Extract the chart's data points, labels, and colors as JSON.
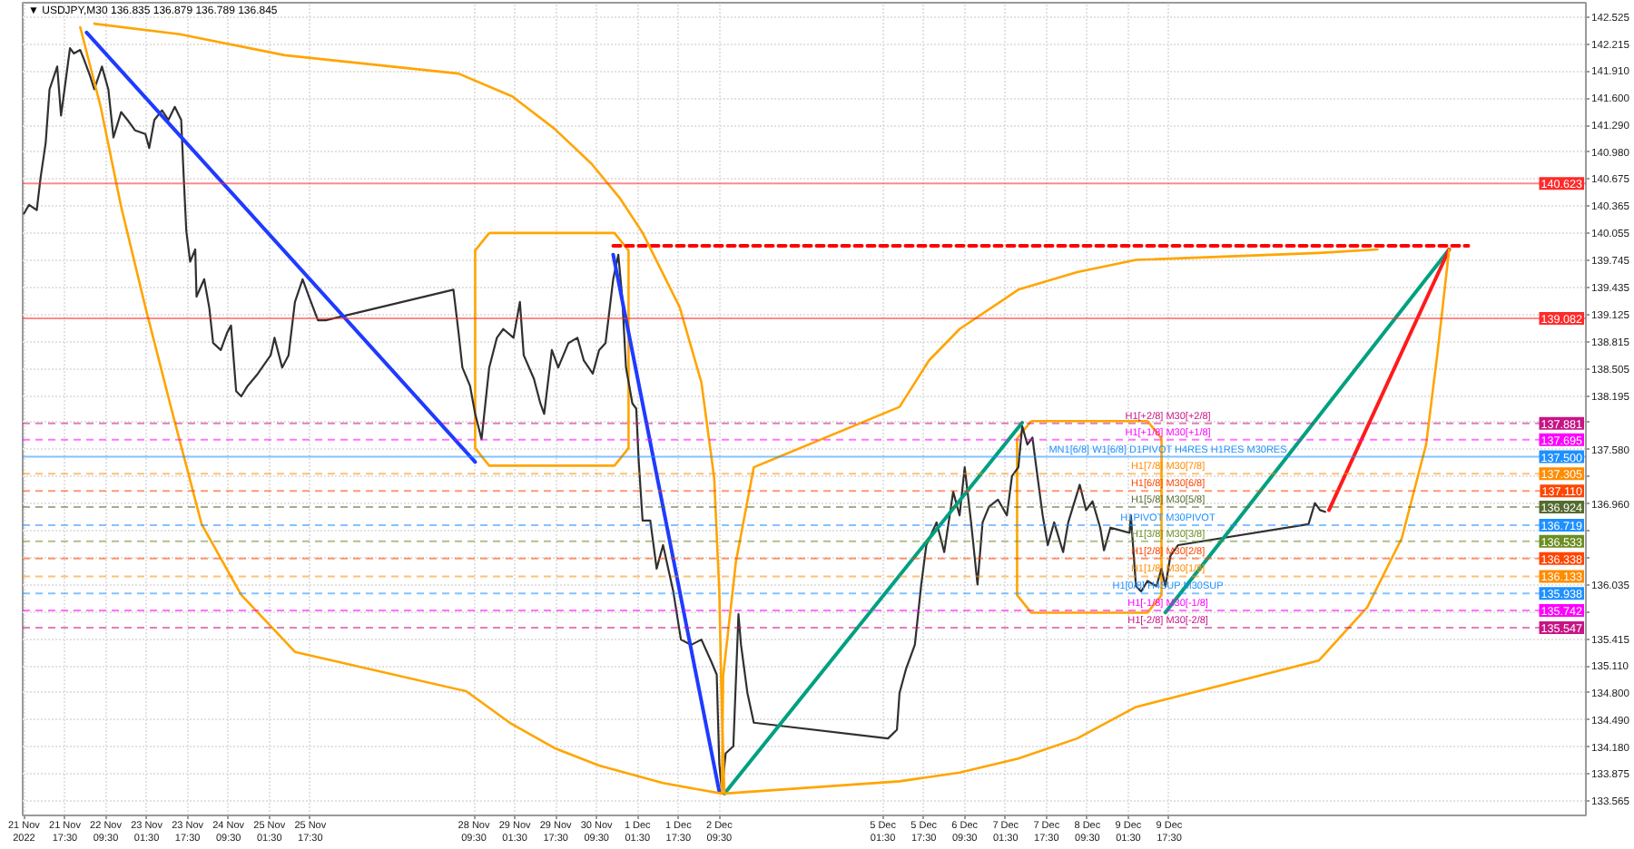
{
  "chart_data": {
    "type": "line",
    "title": "▼ USDJPY,M30  136.835 136.879 136.789 136.845",
    "xlim": [
      "2022-11-21T01:00",
      "2022-12-16T12:30"
    ],
    "xticks": [
      {
        "value": "2022-11-21T01:30",
        "label": "21 Nov 2022"
      },
      {
        "value": "2022-11-21T17:30",
        "label": "21 Nov 17:30"
      },
      {
        "value": "2022-11-22T09:30",
        "label": "22 Nov 09:30"
      },
      {
        "value": "2022-11-23T01:30",
        "label": "23 Nov 01:30"
      },
      {
        "value": "2022-11-23T17:30",
        "label": "23 Nov 17:30"
      },
      {
        "value": "2022-11-24T09:30",
        "label": "24 Nov 09:30"
      },
      {
        "value": "2022-11-25T01:30",
        "label": "25 Nov 01:30"
      },
      {
        "value": "2022-11-25T17:30",
        "label": "25 Nov 17:30"
      },
      {
        "value": "2022-11-28T09:30",
        "label": "28 Nov 09:30"
      },
      {
        "value": "2022-11-29T01:30",
        "label": "29 Nov 01:30"
      },
      {
        "value": "2022-11-29T17:30",
        "label": "29 Nov 17:30"
      },
      {
        "value": "2022-11-30T09:30",
        "label": "30 Nov 09:30"
      },
      {
        "value": "2022-12-01T01:30",
        "label": "1 Dec 01:30"
      },
      {
        "value": "2022-12-01T17:30",
        "label": "1 Dec 17:30"
      },
      {
        "value": "2022-12-02T09:30",
        "label": "2 Dec 09:30"
      },
      {
        "value": "2022-12-05T01:30",
        "label": "5 Dec 01:30"
      },
      {
        "value": "2022-12-05T17:30",
        "label": "5 Dec 17:30"
      },
      {
        "value": "2022-12-06T09:30",
        "label": "6 Dec 09:30"
      },
      {
        "value": "2022-12-07T01:30",
        "label": "7 Dec 01:30"
      },
      {
        "value": "2022-12-07T17:30",
        "label": "7 Dec 17:30"
      },
      {
        "value": "2022-12-08T09:30",
        "label": "8 Dec 09:30"
      },
      {
        "value": "2022-12-09T01:30",
        "label": "9 Dec 01:30"
      },
      {
        "value": "2022-12-09T17:30",
        "label": "9 Dec 17:30"
      }
    ],
    "ylim": [
      133.4,
      142.69
    ],
    "yticks": [
      142.525,
      142.215,
      {
        "value": 141.91,
        "label": "141.910"
      },
      {
        "value": 141.6,
        "label": "141.600"
      },
      {
        "value": 141.29,
        "label": "141.290"
      },
      {
        "value": 140.98,
        "label": "140.980"
      },
      140.675,
      140.365,
      140.055,
      139.745,
      139.435,
      139.125,
      138.815,
      138.505,
      138.195,
      {
        "value": 137.89,
        "label": null
      },
      {
        "value": 137.58,
        "label": "137.580"
      },
      {
        "value": 137.27,
        "label": null
      },
      {
        "value": 136.96,
        "label": "136.960"
      },
      {
        "value": 136.655,
        "label": null
      },
      {
        "value": 136.345,
        "label": null
      },
      136.035,
      {
        "value": 135.73,
        "label": null
      },
      135.415,
      {
        "value": 135.11,
        "label": "135.110"
      },
      {
        "value": 134.8,
        "label": "134.800"
      },
      {
        "value": 134.49,
        "label": "134.490"
      },
      {
        "value": 134.18,
        "label": "134.180"
      },
      133.875,
      133.565
    ],
    "grid": true,
    "series": [
      {
        "color": "#303030",
        "x": [
          "2022-11-21T01:30",
          "2022-11-21T03:30",
          "2022-11-21T06:30",
          "2022-11-21T08:00",
          "2022-11-21T10:00",
          "2022-11-21T11:30",
          "2022-11-21T14:30",
          "2022-11-21T16:00",
          "2022-11-21T18:00",
          "2022-11-21T19:30",
          "2022-11-21T21:00",
          "2022-11-21T23:30",
          "2022-11-22T01:00",
          "2022-11-22T03:30",
          "2022-11-22T05:00",
          "2022-11-22T08:00",
          "2022-11-22T10:30",
          "2022-11-22T12:30",
          "2022-11-22T15:30",
          "2022-11-22T18:00",
          "2022-11-22T21:00",
          "2022-11-23T01:00",
          "2022-11-23T02:30",
          "2022-11-23T04:30",
          "2022-11-23T07:30",
          "2022-11-23T10:00",
          "2022-11-23T12:30",
          "2022-11-23T15:00",
          "2022-11-23T16:00",
          "2022-11-23T17:00",
          "2022-11-23T18:30",
          "2022-11-23T20:30",
          "2022-11-23T21:00",
          "2022-11-24T00:00",
          "2022-11-24T02:00",
          "2022-11-24T03:30",
          "2022-11-24T06:30",
          "2022-11-24T09:00",
          "2022-11-24T10:30",
          "2022-11-24T12:30",
          "2022-11-24T14:30",
          "2022-11-24T17:00",
          "2022-11-24T21:00",
          "2022-11-25T02:00",
          "2022-11-25T03:30",
          "2022-11-25T06:30",
          "2022-11-25T09:00",
          "2022-11-25T11:30",
          "2022-11-25T14:30",
          "2022-11-25T17:00",
          "2022-11-25T20:30",
          "2022-11-25T23:30",
          "2022-11-28T01:30",
          "2022-11-28T03:30",
          "2022-11-28T05:00",
          "2022-11-28T08:00",
          "2022-11-28T10:00",
          "2022-11-28T12:30",
          "2022-11-28T15:30",
          "2022-11-28T18:30",
          "2022-11-28T21:00",
          "2022-11-29T01:00",
          "2022-11-29T03:30",
          "2022-11-29T05:00",
          "2022-11-29T09:00",
          "2022-11-29T11:30",
          "2022-11-29T13:00",
          "2022-11-29T16:00",
          "2022-11-29T18:30",
          "2022-11-29T22:30",
          "2022-11-30T02:00",
          "2022-11-30T04:30",
          "2022-11-30T08:00",
          "2022-11-30T10:30",
          "2022-11-30T13:00",
          "2022-11-30T16:00",
          "2022-11-30T18:00",
          "2022-11-30T19:30",
          "2022-11-30T21:00",
          "2022-11-30T23:30",
          "2022-12-01T01:00",
          "2022-12-01T02:00",
          "2022-12-01T03:30",
          "2022-12-01T06:30",
          "2022-12-01T09:00",
          "2022-12-01T11:30",
          "2022-12-01T15:30",
          "2022-12-01T18:30",
          "2022-12-01T22:30",
          "2022-12-02T02:30",
          "2022-12-02T06:30",
          "2022-12-02T08:30",
          "2022-12-02T09:30",
          "2022-12-02T10:30",
          "2022-12-02T12:00",
          "2022-12-02T15:00",
          "2022-12-02T17:00",
          "2022-12-02T18:00",
          "2022-12-02T20:30",
          "2022-12-02T23:00",
          "2022-12-05T03:30",
          "2022-12-05T07:00",
          "2022-12-05T08:00",
          "2022-12-05T10:30",
          "2022-12-05T14:00",
          "2022-12-05T16:30",
          "2022-12-05T18:30",
          "2022-12-05T22:30",
          "2022-12-06T01:30",
          "2022-12-06T05:00",
          "2022-12-06T07:30",
          "2022-12-06T09:30",
          "2022-12-06T12:00",
          "2022-12-06T14:30",
          "2022-12-06T16:30",
          "2022-12-06T19:00",
          "2022-12-06T22:30",
          "2022-12-07T02:00",
          "2022-12-07T04:00",
          "2022-12-07T06:30",
          "2022-12-07T08:00",
          "2022-12-07T10:00",
          "2022-12-07T12:00",
          "2022-12-07T13:30",
          "2022-12-07T16:00",
          "2022-12-07T18:00",
          "2022-12-07T20:30",
          "2022-12-08T00:00",
          "2022-12-08T02:00",
          "2022-12-08T06:30",
          "2022-12-08T09:00",
          "2022-12-08T11:30",
          "2022-12-08T14:30",
          "2022-12-08T16:00",
          "2022-12-08T18:30",
          "2022-12-08T21:00",
          "2022-12-09T02:00",
          "2022-12-09T02:30",
          "2022-12-09T04:30",
          "2022-12-09T06:30",
          "2022-12-09T09:00",
          "2022-12-09T12:30",
          "2022-12-09T14:30",
          "2022-12-09T16:00",
          "2022-12-09T18:00",
          "2022-12-09T21:00",
          "2022-12-12T00:00",
          "2022-12-12T02:30",
          "2022-12-12T04:30",
          "2022-12-12T06:30"
        ],
        "values": [
          140.28,
          140.38,
          140.32,
          140.69,
          141.09,
          141.7,
          141.96,
          141.4,
          141.84,
          142.17,
          142.11,
          142.15,
          142.04,
          141.84,
          141.7,
          141.96,
          141.7,
          141.15,
          141.44,
          141.35,
          141.23,
          141.19,
          141.03,
          141.35,
          141.46,
          141.35,
          141.5,
          141.35,
          140.69,
          140.08,
          139.73,
          139.87,
          139.33,
          139.53,
          139.2,
          138.8,
          138.72,
          138.92,
          139.0,
          138.25,
          138.19,
          138.31,
          138.45,
          138.66,
          138.86,
          138.52,
          138.66,
          139.27,
          139.53,
          139.33,
          139.06,
          139.06,
          139.41,
          138.92,
          138.52,
          138.31,
          137.99,
          137.7,
          138.52,
          138.86,
          138.96,
          138.86,
          139.27,
          138.66,
          138.39,
          138.11,
          137.99,
          138.72,
          138.52,
          138.8,
          138.86,
          138.6,
          138.45,
          138.72,
          138.8,
          139.53,
          139.81,
          139.33,
          138.52,
          138.11,
          138.05,
          137.44,
          136.77,
          136.77,
          136.22,
          136.49,
          135.96,
          135.41,
          135.35,
          135.41,
          135.15,
          135.01,
          133.99,
          133.69,
          134.11,
          134.19,
          135.7,
          135.35,
          134.8,
          134.46,
          134.28,
          134.38,
          134.8,
          135.07,
          135.35,
          136.04,
          136.49,
          136.75,
          136.41,
          137.1,
          136.83,
          137.38,
          136.75,
          136.04,
          136.75,
          136.93,
          137.01,
          136.83,
          137.28,
          137.38,
          137.85,
          137.64,
          137.72,
          137.38,
          136.83,
          136.49,
          136.75,
          136.41,
          136.75,
          137.18,
          136.89,
          136.99,
          136.69,
          136.43,
          136.69,
          136.67,
          136.63,
          136.83,
          136.02,
          135.96,
          136.08,
          136.02,
          136.22,
          136.02,
          136.37,
          136.49,
          136.73,
          136.97,
          136.89,
          136.87
        ]
      },
      {
        "color": "#1f3bff",
        "x": [
          "2022-11-22T02:00",
          "2022-11-28T10:00"
        ],
        "values": [
          142.35,
          137.44
        ]
      },
      {
        "color": "#1f3bff",
        "x": [
          "2022-11-30T16:00",
          "2022-12-02T09:30"
        ],
        "values": [
          139.81,
          133.67
        ]
      },
      {
        "color": "#00a080",
        "x": [
          "2022-12-02T11:30",
          "2022-12-07T08:00"
        ],
        "values": [
          133.65,
          137.89
        ]
      },
      {
        "color": "#00a080",
        "x": [
          "2022-12-09T16:00",
          "2022-12-14T07:00"
        ],
        "values": [
          135.72,
          139.87
        ]
      },
      {
        "color": "#ff1a1a",
        "x": [
          "2022-12-12T08:00",
          "2022-12-14T07:00"
        ],
        "values": [
          136.89,
          139.87
        ]
      },
      {
        "color": "#ff0000",
        "line_style": "dashed",
        "x": [
          "2022-11-30T16:00",
          "2022-12-14T14:30"
        ],
        "values": [
          139.91,
          139.91
        ]
      },
      {
        "color": "#ffa500",
        "x": [
          "2022-11-22T05:00",
          "2022-11-23T14:30",
          "2022-11-25T07:30",
          "2022-11-28T03:30",
          "2022-11-29T00:30",
          "2022-11-29T17:00",
          "2022-11-30T07:30",
          "2022-11-30T18:30",
          "2022-12-01T03:30",
          "2022-12-01T18:00",
          "2022-12-02T02:30",
          "2022-12-02T07:30",
          "2022-12-02T09:30",
          "2022-12-02T10:30",
          "2022-12-02T11:30",
          "2022-12-05T08:00",
          "2022-12-06T07:30",
          "2022-12-07T06:30",
          "2022-12-08T05:30",
          "2022-12-09T04:30",
          "2022-12-12T04:00",
          "2022-12-12T23:00",
          "2022-12-13T12:30",
          "2022-12-13T22:00",
          "2022-12-14T02:30",
          "2022-12-14T07:00"
        ],
        "values": [
          142.45,
          142.33,
          142.09,
          141.88,
          141.62,
          141.25,
          140.85,
          140.46,
          140.06,
          139.21,
          138.35,
          137.26,
          135.96,
          134.6,
          133.65,
          133.79,
          133.89,
          134.05,
          134.28,
          134.64,
          135.17,
          135.78,
          136.57,
          137.64,
          138.7,
          139.87
        ]
      },
      {
        "color": "#ffa500",
        "x": [
          "2022-11-21T23:30",
          "2022-11-22T07:30",
          "2022-11-22T15:30",
          "2022-11-23T01:00",
          "2022-11-23T11:30",
          "2022-11-23T23:00",
          "2022-11-24T14:30",
          "2022-11-25T11:30",
          "2022-11-28T06:30",
          "2022-11-28T23:30",
          "2022-11-29T17:00",
          "2022-11-30T10:30",
          "2022-12-01T11:30",
          "2022-12-02T10:30",
          "2022-12-02T11:00",
          "2022-12-02T16:00",
          "2022-12-02T23:00",
          "2022-12-05T08:00",
          "2022-12-05T19:30",
          "2022-12-06T07:30",
          "2022-12-07T06:30",
          "2022-12-08T05:30",
          "2022-12-09T04:30",
          "2022-12-12T04:00",
          "2022-12-13T03:00"
        ],
        "values": [
          142.41,
          141.5,
          140.36,
          139.21,
          138.01,
          136.73,
          135.92,
          135.27,
          134.82,
          134.46,
          134.17,
          133.97,
          133.77,
          133.65,
          134.99,
          136.3,
          137.38,
          138.07,
          138.6,
          138.96,
          139.41,
          139.61,
          139.75,
          139.83,
          139.87
        ]
      }
    ],
    "ref_lines": [
      {
        "axis": "y",
        "value": 140.623,
        "label": "140.623",
        "color": "#ff2a2a",
        "line_style": "solid"
      },
      {
        "axis": "y",
        "value": 139.082,
        "label": "139.082",
        "color": "#ff2a2a",
        "line_style": "solid"
      },
      {
        "axis": "y",
        "value": 137.881,
        "label": "137.881",
        "color": "#c71585",
        "line_style": "dashed"
      },
      {
        "axis": "y",
        "value": 137.695,
        "label": "137.695",
        "color": "#ff00ff",
        "line_style": "dashed"
      },
      {
        "axis": "y",
        "value": 137.5,
        "label": "137.500",
        "color": "#1e90ff",
        "line_style": "solid"
      },
      {
        "axis": "y",
        "value": 137.305,
        "label": "137.305",
        "color": "#ff8c00",
        "line_style": "dashed"
      },
      {
        "axis": "y",
        "value": 137.11,
        "label": "137.110",
        "color": "#ff4500",
        "line_style": "dashed"
      },
      {
        "axis": "y",
        "value": 136.924,
        "label": "136.924",
        "color": "#556b2f",
        "line_style": "dashed"
      },
      {
        "axis": "y",
        "value": 136.719,
        "label": "136.719",
        "color": "#1e90ff",
        "line_style": "dashed"
      },
      {
        "axis": "y",
        "value": 136.533,
        "label": "136.533",
        "color": "#6b8e23",
        "line_style": "dashed"
      },
      {
        "axis": "y",
        "value": 136.338,
        "label": "136.338",
        "color": "#ff4500",
        "line_style": "dashed"
      },
      {
        "axis": "y",
        "value": 136.133,
        "label": "136.133",
        "color": "#ff8c00",
        "line_style": "dashed"
      },
      {
        "axis": "y",
        "value": 135.938,
        "label": "135.938",
        "color": "#1e90ff",
        "line_style": "dashed"
      },
      {
        "axis": "y",
        "value": 135.742,
        "label": "135.742",
        "color": "#ff00ff",
        "line_style": "dashed"
      },
      {
        "axis": "y",
        "value": 135.547,
        "label": "135.547",
        "color": "#c71585",
        "line_style": "dashed"
      }
    ],
    "annotations": [
      {
        "text": "H1[+2/8] M30[+2/8]",
        "x": "2022-12-09T17:00",
        "y": 137.881
      },
      {
        "text": "H1[+1/8] M30[+1/8]",
        "x": "2022-12-09T17:00",
        "y": 137.695
      },
      {
        "text": "MN1[6/8] W1[6/8] D1PIVOT H4RES H1RES M30RES",
        "x": "2022-12-09T17:00",
        "y": 137.5
      },
      {
        "text": "H1[7/8] M30[7/8]",
        "x": "2022-12-09T17:00",
        "y": 137.305
      },
      {
        "text": "H1[6/8] M30[6/8]",
        "x": "2022-12-09T17:00",
        "y": 137.11
      },
      {
        "text": "H1[5/8] M30[5/8]",
        "x": "2022-12-09T17:00",
        "y": 136.924
      },
      {
        "text": "H1PIVOT M30PIVOT",
        "x": "2022-12-09T17:00",
        "y": 136.719
      },
      {
        "text": "H1[3/8] M30[3/8]",
        "x": "2022-12-09T17:00",
        "y": 136.533
      },
      {
        "text": "H1[2/8] M30[2/8]",
        "x": "2022-12-09T17:00",
        "y": 136.338
      },
      {
        "text": "H1[1/8] M30[1/8]",
        "x": "2022-12-09T17:00",
        "y": 136.133
      },
      {
        "text": "H1[0/8] H4SUP M30SUP",
        "x": "2022-12-09T17:00",
        "y": 135.938
      },
      {
        "text": "H1[-1/8] M30[-1/8]",
        "x": "2022-12-09T17:00",
        "y": 135.742
      },
      {
        "text": "H1[-2/8] M30[-2/8]",
        "x": "2022-12-09T17:00",
        "y": 135.547
      }
    ]
  }
}
